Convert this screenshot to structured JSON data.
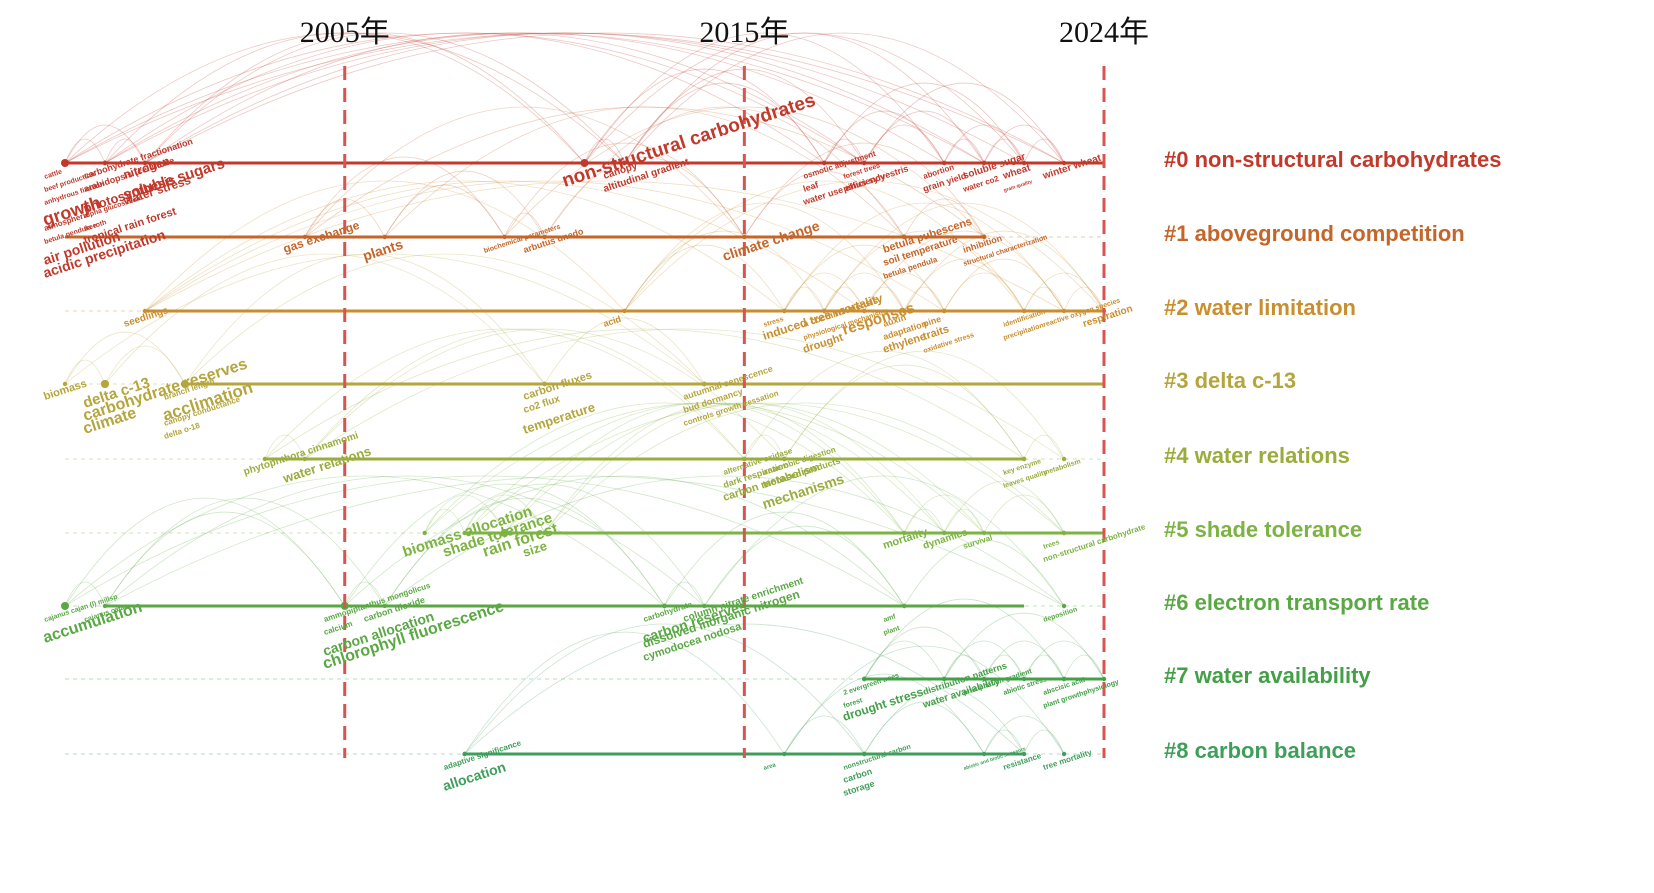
{
  "chart_data": {
    "type": "timeline",
    "x_range": [
      1998,
      2024
    ],
    "year_markers": [
      {
        "year": 2005,
        "label": "2005年"
      },
      {
        "year": 2015,
        "label": "2015年"
      },
      {
        "year": 2024,
        "label": "2024年"
      }
    ],
    "clusters": [
      {
        "id": 0,
        "label": "#0 non-structural carbohydrates",
        "color": "#c0392b",
        "start": 1998,
        "end": 2024
      },
      {
        "id": 1,
        "label": "#1 aboveground competition",
        "color": "#c4652a",
        "start": 1998,
        "end": 2021
      },
      {
        "id": 2,
        "label": "#2 water limitation",
        "color": "#c98e2e",
        "start": 2000,
        "end": 2024
      },
      {
        "id": 3,
        "label": "#3 delta c-13",
        "color": "#b5a53c",
        "start": 2001,
        "end": 2024
      },
      {
        "id": 4,
        "label": "#4 water relations",
        "color": "#9aac3c",
        "start": 2003,
        "end": 2022
      },
      {
        "id": 5,
        "label": "#5 shade tolerance",
        "color": "#7cb342",
        "start": 2008,
        "end": 2024
      },
      {
        "id": 6,
        "label": "#6 electron transport rate",
        "color": "#5aa844",
        "start": 1999,
        "end": 2022
      },
      {
        "id": 7,
        "label": "#7 water availability",
        "color": "#43a047",
        "start": 2018,
        "end": 2024
      },
      {
        "id": 8,
        "label": "#8 carbon balance",
        "color": "#3f9f5a",
        "start": 2008,
        "end": 2022
      }
    ],
    "keywords": [
      {
        "t": "cattle",
        "year": 1998,
        "c": 0,
        "s": 7
      },
      {
        "t": "beef production",
        "year": 1998,
        "c": 0,
        "s": 7
      },
      {
        "t": "carbohydrate fractionation",
        "year": 1999,
        "c": 0,
        "s": 9
      },
      {
        "t": "arabidopsis (cellulose",
        "year": 1999,
        "c": 0,
        "s": 9
      },
      {
        "t": "nitrogen",
        "year": 2000,
        "c": 0,
        "s": 12
      },
      {
        "t": "photosynthesis",
        "year": 1999,
        "c": 0,
        "s": 13
      },
      {
        "t": "soluble sugars",
        "year": 2000,
        "c": 0,
        "s": 15
      },
      {
        "t": "water stress",
        "year": 2000,
        "c": 0,
        "s": 12
      },
      {
        "t": "anhydrous fixation",
        "year": 1998,
        "c": 0,
        "s": 7
      },
      {
        "t": "growth",
        "year": 1998,
        "c": 0,
        "s": 18
      },
      {
        "t": "atmospheric",
        "year": 1998,
        "c": 0,
        "s": 8
      },
      {
        "t": "betula pendula roth",
        "year": 1998,
        "c": 0,
        "s": 7
      },
      {
        "t": "alpha glucosidase",
        "year": 1999,
        "c": 0,
        "s": 7
      },
      {
        "t": "tree",
        "year": 1999,
        "c": 0,
        "s": 7
      },
      {
        "t": "air pollution",
        "year": 1998,
        "c": 0,
        "s": 14
      },
      {
        "t": "acidic precipitation",
        "year": 1998,
        "c": 0,
        "s": 14
      },
      {
        "t": "tropical rain forest",
        "year": 1999,
        "c": 0,
        "s": 11
      },
      {
        "t": "canopy",
        "year": 2012,
        "c": 0,
        "s": 10
      },
      {
        "t": "altitudinal gradient",
        "year": 2012,
        "c": 0,
        "s": 10
      },
      {
        "t": "non-structural carbohydrates",
        "year": 2011,
        "c": 0,
        "s": 19
      },
      {
        "t": "osmotic adjustment",
        "year": 2017,
        "c": 0,
        "s": 8
      },
      {
        "t": "leaf",
        "year": 2017,
        "c": 0,
        "s": 9
      },
      {
        "t": "forest trees",
        "year": 2018,
        "c": 0,
        "s": 7
      },
      {
        "t": "water use efficiency",
        "year": 2017,
        "c": 0,
        "s": 9
      },
      {
        "t": "pinus sylvestris",
        "year": 2018,
        "c": 0,
        "s": 9
      },
      {
        "t": "abortion",
        "year": 2020,
        "c": 0,
        "s": 8
      },
      {
        "t": "grain yield",
        "year": 2020,
        "c": 0,
        "s": 9
      },
      {
        "t": "soluble sugar",
        "year": 2021,
        "c": 0,
        "s": 10
      },
      {
        "t": "water co2",
        "year": 2021,
        "c": 0,
        "s": 8
      },
      {
        "t": "wheat",
        "year": 2022,
        "c": 0,
        "s": 10
      },
      {
        "t": "winter wheat",
        "year": 2023,
        "c": 0,
        "s": 10
      },
      {
        "t": "grain quality",
        "year": 2022,
        "c": 0,
        "s": 5
      },
      {
        "t": "biochemical parameters",
        "year": 2009,
        "c": 1,
        "s": 7
      },
      {
        "t": "arbutus unedo",
        "year": 2010,
        "c": 1,
        "s": 9
      },
      {
        "t": "gas exchange",
        "year": 2004,
        "c": 1,
        "s": 12
      },
      {
        "t": "plants",
        "year": 2006,
        "c": 1,
        "s": 14
      },
      {
        "t": "climate change",
        "year": 2015,
        "c": 1,
        "s": 14
      },
      {
        "t": "betula pubescens",
        "year": 2019,
        "c": 1,
        "s": 11
      },
      {
        "t": "soil temperature",
        "year": 2019,
        "c": 1,
        "s": 10
      },
      {
        "t": "betula pendula",
        "year": 2019,
        "c": 1,
        "s": 8
      },
      {
        "t": "inhibition",
        "year": 2021,
        "c": 1,
        "s": 9
      },
      {
        "t": "structural characterization",
        "year": 2021,
        "c": 1,
        "s": 7
      },
      {
        "t": "seedlings",
        "year": 2000,
        "c": 2,
        "s": 10
      },
      {
        "t": "acid",
        "year": 2012,
        "c": 2,
        "s": 9
      },
      {
        "t": "stress",
        "year": 2016,
        "c": 2,
        "s": 7
      },
      {
        "t": "a cochinchinensis",
        "year": 2017,
        "c": 2,
        "s": 9
      },
      {
        "t": "induced tree mortality",
        "year": 2016,
        "c": 2,
        "s": 12
      },
      {
        "t": "physiological mechanisms",
        "year": 2017,
        "c": 2,
        "s": 7
      },
      {
        "t": "drought",
        "year": 2017,
        "c": 2,
        "s": 11
      },
      {
        "t": "auxin",
        "year": 2019,
        "c": 2,
        "s": 9
      },
      {
        "t": "adaptation",
        "year": 2019,
        "c": 2,
        "s": 9
      },
      {
        "t": "pine",
        "year": 2020,
        "c": 2,
        "s": 9
      },
      {
        "t": "traits",
        "year": 2020,
        "c": 2,
        "s": 11
      },
      {
        "t": "ethylene",
        "year": 2019,
        "c": 2,
        "s": 11
      },
      {
        "t": "oxidative stress",
        "year": 2020,
        "c": 2,
        "s": 7
      },
      {
        "t": "identification",
        "year": 2022,
        "c": 2,
        "s": 7
      },
      {
        "t": "precipitation",
        "year": 2022,
        "c": 2,
        "s": 7
      },
      {
        "t": "reactive oxygen species",
        "year": 2023,
        "c": 2,
        "s": 7
      },
      {
        "t": "respiration",
        "year": 2024,
        "c": 2,
        "s": 10
      },
      {
        "t": "responses",
        "year": 2018,
        "c": 2,
        "s": 15
      },
      {
        "t": "biomass",
        "year": 1998,
        "c": 3,
        "s": 11
      },
      {
        "t": "delta c-13",
        "year": 1999,
        "c": 3,
        "s": 15
      },
      {
        "t": "branch length",
        "year": 2001,
        "c": 3,
        "s": 8
      },
      {
        "t": "acclimation",
        "year": 2001,
        "c": 3,
        "s": 17
      },
      {
        "t": "carbohydrate reserves",
        "year": 1999,
        "c": 3,
        "s": 16
      },
      {
        "t": "canopy conductance",
        "year": 2001,
        "c": 3,
        "s": 8
      },
      {
        "t": "delta o-18",
        "year": 2001,
        "c": 3,
        "s": 8
      },
      {
        "t": "climate",
        "year": 1999,
        "c": 3,
        "s": 16
      },
      {
        "t": "carbon fluxes",
        "year": 2010,
        "c": 3,
        "s": 11
      },
      {
        "t": "co2 flux",
        "year": 2010,
        "c": 3,
        "s": 10
      },
      {
        "t": "temperature",
        "year": 2010,
        "c": 3,
        "s": 13
      },
      {
        "t": "autumnal senescence",
        "year": 2014,
        "c": 3,
        "s": 9
      },
      {
        "t": "bud dormancy",
        "year": 2014,
        "c": 3,
        "s": 9
      },
      {
        "t": "controls growth cessation",
        "year": 2014,
        "c": 3,
        "s": 8
      },
      {
        "t": "phytophthora cinnamomi",
        "year": 2003,
        "c": 4,
        "s": 10
      },
      {
        "t": "water relations",
        "year": 2004,
        "c": 4,
        "s": 13
      },
      {
        "t": "alternative oxidase",
        "year": 2015,
        "c": 4,
        "s": 8
      },
      {
        "t": "dark respiration",
        "year": 2015,
        "c": 4,
        "s": 9
      },
      {
        "t": "anaerobic digestion",
        "year": 2016,
        "c": 4,
        "s": 8
      },
      {
        "t": "biobased products",
        "year": 2016,
        "c": 4,
        "s": 9
      },
      {
        "t": "carbon metabolism",
        "year": 2015,
        "c": 4,
        "s": 11
      },
      {
        "t": "mechanisms",
        "year": 2016,
        "c": 4,
        "s": 14
      },
      {
        "t": "key enzyme",
        "year": 2022,
        "c": 4,
        "s": 7
      },
      {
        "t": "leaves quality",
        "year": 2022,
        "c": 4,
        "s": 7
      },
      {
        "t": "metabolism",
        "year": 2023,
        "c": 4,
        "s": 7
      },
      {
        "t": "shade tolerance",
        "year": 2008,
        "c": 5,
        "s": 15
      },
      {
        "t": "rain forest",
        "year": 2009,
        "c": 5,
        "s": 16
      },
      {
        "t": "biomass allocation",
        "year": 2007,
        "c": 5,
        "s": 15
      },
      {
        "t": "size",
        "year": 2010,
        "c": 5,
        "s": 13
      },
      {
        "t": "mortality",
        "year": 2019,
        "c": 5,
        "s": 11
      },
      {
        "t": "dynamics",
        "year": 2020,
        "c": 5,
        "s": 10
      },
      {
        "t": "survival",
        "year": 2021,
        "c": 5,
        "s": 8
      },
      {
        "t": "trees",
        "year": 2023,
        "c": 5,
        "s": 7
      },
      {
        "t": "non-structural carbohydrate",
        "year": 2023,
        "c": 5,
        "s": 8
      },
      {
        "t": "cajanus cajan",
        "year": 1999,
        "c": 6,
        "s": 7
      },
      {
        "t": "cajanus cajan (l) millsp",
        "year": 1998,
        "c": 6,
        "s": 7
      },
      {
        "t": "accumulation",
        "year": 1998,
        "c": 6,
        "s": 16
      },
      {
        "t": "ammopiptanthus mongolicus",
        "year": 2005,
        "c": 6,
        "s": 8
      },
      {
        "t": "calcium",
        "year": 2005,
        "c": 6,
        "s": 8
      },
      {
        "t": "carbon dioxide",
        "year": 2006,
        "c": 6,
        "s": 9
      },
      {
        "t": "carbon allocation",
        "year": 2005,
        "c": 6,
        "s": 14
      },
      {
        "t": "chlorophyll fluorescence",
        "year": 2005,
        "c": 6,
        "s": 16
      },
      {
        "t": "carbohydrate",
        "year": 2013,
        "c": 6,
        "s": 8
      },
      {
        "t": "carbon reserves",
        "year": 2013,
        "c": 6,
        "s": 14
      },
      {
        "t": "column nitrate enrichment",
        "year": 2014,
        "c": 6,
        "s": 10
      },
      {
        "t": "dissolved inorganic nitrogen",
        "year": 2013,
        "c": 6,
        "s": 12
      },
      {
        "t": "cymodocea nodosa",
        "year": 2013,
        "c": 6,
        "s": 11
      },
      {
        "t": "amf",
        "year": 2019,
        "c": 6,
        "s": 7
      },
      {
        "t": "plant",
        "year": 2019,
        "c": 6,
        "s": 7
      },
      {
        "t": "deposition",
        "year": 2023,
        "c": 6,
        "s": 7
      },
      {
        "t": "2 evergreen trees",
        "year": 2018,
        "c": 7,
        "s": 7
      },
      {
        "t": "forest",
        "year": 2018,
        "c": 7,
        "s": 7
      },
      {
        "t": "distribution patterns",
        "year": 2020,
        "c": 7,
        "s": 9
      },
      {
        "t": "water availability",
        "year": 2020,
        "c": 7,
        "s": 10
      },
      {
        "t": "precipitation gradient",
        "year": 2021,
        "c": 7,
        "s": 7
      },
      {
        "t": "abiotic stress",
        "year": 2022,
        "c": 7,
        "s": 7
      },
      {
        "t": "abscisic acid",
        "year": 2023,
        "c": 7,
        "s": 7
      },
      {
        "t": "plant growth",
        "year": 2023,
        "c": 7,
        "s": 7
      },
      {
        "t": "physiology",
        "year": 2024,
        "c": 7,
        "s": 7
      },
      {
        "t": "drought stress",
        "year": 2018,
        "c": 7,
        "s": 12
      },
      {
        "t": "adaptive significance",
        "year": 2008,
        "c": 8,
        "s": 8
      },
      {
        "t": "allocation",
        "year": 2008,
        "c": 8,
        "s": 14
      },
      {
        "t": "area",
        "year": 2016,
        "c": 8,
        "s": 6
      },
      {
        "t": "nonstructural carbon",
        "year": 2018,
        "c": 8,
        "s": 7
      },
      {
        "t": "carbon",
        "year": 2018,
        "c": 8,
        "s": 9
      },
      {
        "t": "storage",
        "year": 2018,
        "c": 8,
        "s": 9
      },
      {
        "t": "abiotic and biotic stressors",
        "year": 2021,
        "c": 8,
        "s": 5
      },
      {
        "t": "resistance",
        "year": 2022,
        "c": 8,
        "s": 8
      },
      {
        "t": "tree mortality",
        "year": 2023,
        "c": 8,
        "s": 8
      }
    ]
  }
}
